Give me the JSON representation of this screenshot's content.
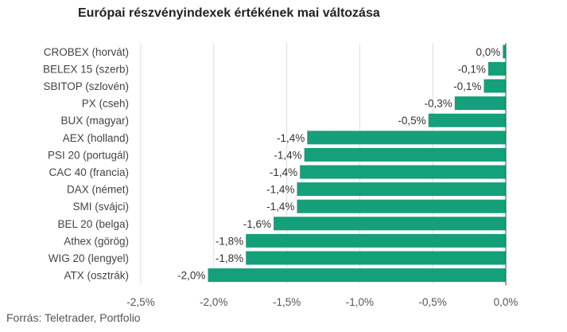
{
  "title": "Európai részvényindexek értékének mai változása",
  "source": "Forrás: Teletrader, Portfolio",
  "chart_data": {
    "type": "bar",
    "orientation": "horizontal",
    "title": "Európai részvényindexek értékének mai változása",
    "categories": [
      "CROBEX (horvát)",
      "BELEX 15 (szerb)",
      "SBITOP (szlovén)",
      "PX (cseh)",
      "BUX (magyar)",
      "AEX (holland)",
      "PSI 20 (portugál)",
      "CAC 40 (francia)",
      "DAX (német)",
      "SMI (svájci)",
      "BEL 20 (belga)",
      "Athex (görög)",
      "WIG 20 (lengyel)",
      "ATX (osztrák)"
    ],
    "values": [
      -0.02,
      -0.12,
      -0.15,
      -0.35,
      -0.53,
      -1.36,
      -1.38,
      -1.41,
      -1.43,
      -1.43,
      -1.59,
      -1.78,
      -1.78,
      -2.04
    ],
    "value_labels": [
      "0,0%",
      "-0,1%",
      "-0,1%",
      "-0,3%",
      "-0,5%",
      "-1,4%",
      "-1,4%",
      "-1,4%",
      "-1,4%",
      "-1,4%",
      "-1,6%",
      "-1,8%",
      "-1,8%",
      "-2,0%"
    ],
    "x_ticks": [
      -2.5,
      -2.0,
      -1.5,
      -1.0,
      -0.5,
      0.0
    ],
    "x_tick_labels": [
      "-2,5%",
      "-2,0%",
      "-1,5%",
      "-1,0%",
      "-0,5%",
      "0,0%"
    ],
    "xlim": [
      -2.5,
      0.0
    ],
    "xlabel": "",
    "ylabel": "",
    "grid": "vertical",
    "legend": "none",
    "bar_color": "#13a07b",
    "grid_color": "#dddddd",
    "axis_color": "#444444"
  }
}
